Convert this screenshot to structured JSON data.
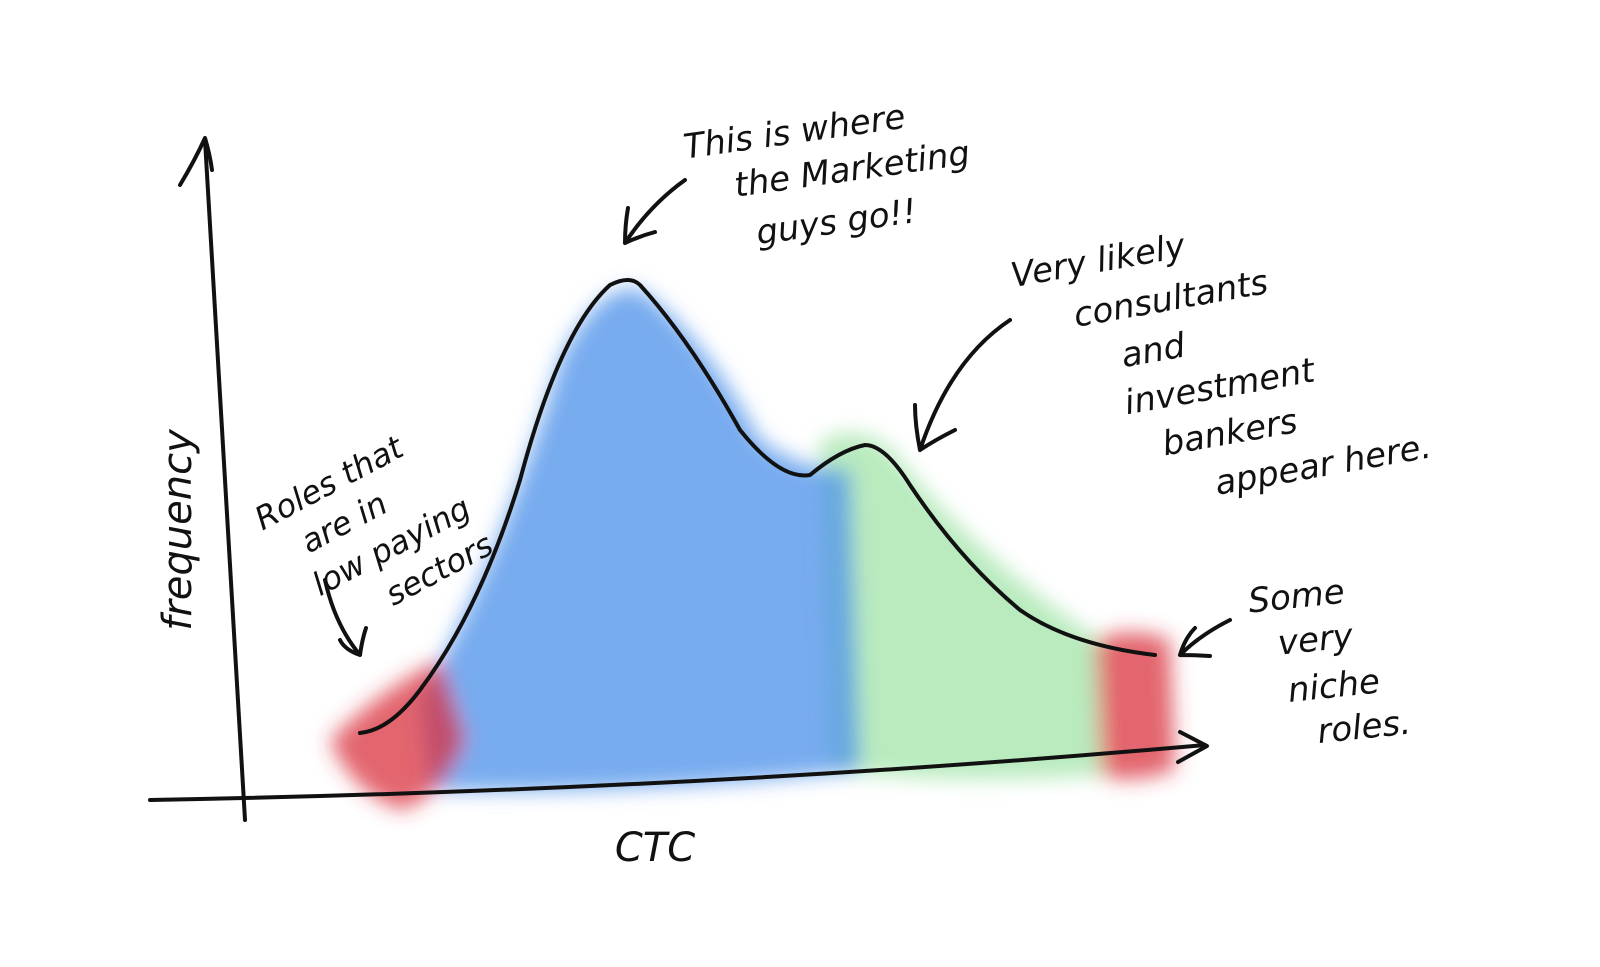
{
  "axes": {
    "y_label": "frequency",
    "x_label": "CTC"
  },
  "annotations": [
    {
      "lines": [
        "This is where",
        "the Marketing",
        "guys go!!"
      ]
    },
    {
      "lines": [
        "Very likely",
        "consultants",
        "and",
        "investment",
        "bankers",
        "appear here."
      ]
    },
    {
      "lines": [
        "Roles that",
        "are in",
        "low paying",
        "sectors"
      ]
    },
    {
      "lines": [
        "Some",
        "very",
        "niche",
        "roles."
      ]
    }
  ]
}
